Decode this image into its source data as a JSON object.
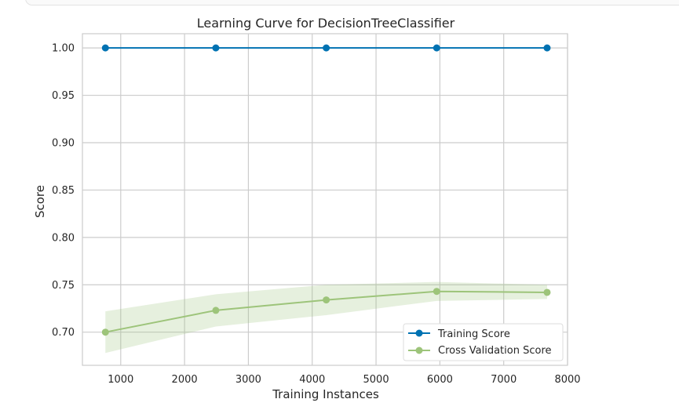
{
  "chart_data": {
    "type": "line",
    "title": "Learning Curve for DecisionTreeClassifier",
    "xlabel": "Training Instances",
    "ylabel": "Score",
    "xlim": [
      400,
      8000
    ],
    "ylim": [
      0.665,
      1.015
    ],
    "xticks": [
      1000,
      2000,
      3000,
      4000,
      5000,
      6000,
      7000,
      8000
    ],
    "yticks": [
      0.7,
      0.75,
      0.8,
      0.85,
      0.9,
      0.95,
      1.0
    ],
    "xtick_labels": [
      "1000",
      "2000",
      "3000",
      "4000",
      "5000",
      "6000",
      "7000",
      "8000"
    ],
    "ytick_labels": [
      "0.70",
      "0.75",
      "0.80",
      "0.85",
      "0.90",
      "0.95",
      "1.00"
    ],
    "x": [
      760,
      2490,
      4220,
      5950,
      7680
    ],
    "series": [
      {
        "name": "Training Score",
        "color": "#0072b2",
        "values": [
          1.0,
          1.0,
          1.0,
          1.0,
          1.0
        ],
        "band_low": [
          1.0,
          1.0,
          1.0,
          1.0,
          1.0
        ],
        "band_high": [
          1.0,
          1.0,
          1.0,
          1.0,
          1.0
        ]
      },
      {
        "name": "Cross Validation Score",
        "color": "#9dc47a",
        "values": [
          0.7,
          0.723,
          0.734,
          0.743,
          0.742
        ],
        "band_low": [
          0.678,
          0.706,
          0.718,
          0.733,
          0.735
        ],
        "band_high": [
          0.722,
          0.74,
          0.75,
          0.753,
          0.75
        ]
      }
    ],
    "grid": true,
    "legend_position": "lower-right"
  }
}
